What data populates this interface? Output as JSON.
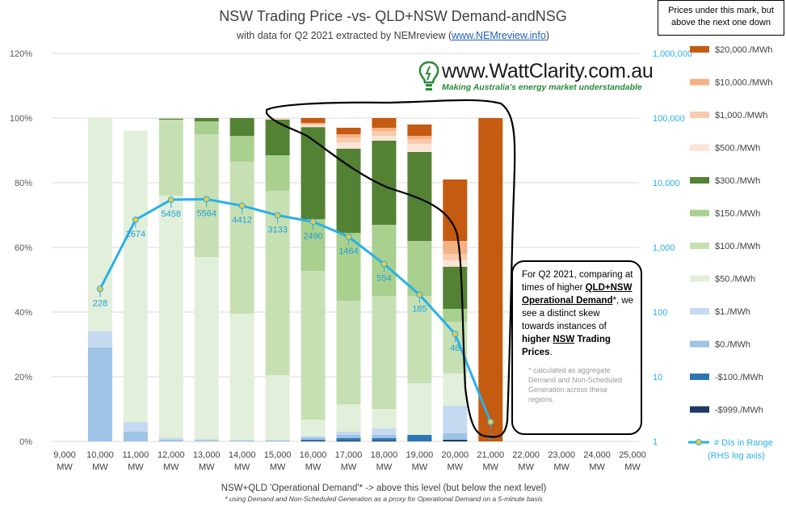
{
  "title": "NSW Trading Price -vs- QLD+NSW Demand-andNSG",
  "subtitle_prefix": "with data for Q2 2021 extracted by NEMreview (",
  "subtitle_link": "www.NEMreview.info",
  "subtitle_suffix": ")",
  "logo": {
    "brand": "www.WattClarity.com.au",
    "tagline": "Making Australia's energy market understandable"
  },
  "legend_header": "Prices under this mark, but above the next one down",
  "note": {
    "p1": "For Q2 2021, comparing at times of higher",
    "p1_bold": "QLD+NSW Operational Demand",
    "p1_rest": "*, we see a distinct skew towards instances of",
    "p1_bold2": "higher",
    "p1_bold3": "NSW",
    "p1_bold4": "Trading Prices",
    "p1_end": ".",
    "footnote": "* calculated as aggregate Demand and Non-Scheduled Generation across these regions."
  },
  "chart_data": {
    "type": "bar",
    "stacked": true,
    "xlabel": "NSW+QLD  'Operational Demand'* -> above this level (but below the next level)",
    "xlabel_note": "* using Demand and Non-Scheduled Generation as a proxy for Operational Demand on a 5-minute basis",
    "categories": [
      "9,000|MW",
      "10,000|MW",
      "11,000|MW",
      "12,000|MW",
      "13,000|MW",
      "14,000|MW",
      "15,000|MW",
      "16,000|MW",
      "17,000|MW",
      "18,000|MW",
      "19,000|MW",
      "20,000|MW",
      "21,000|MW",
      "22,000|MW",
      "23,000|MW",
      "24,000|MW",
      "25,000|MW"
    ],
    "y_left": {
      "ticks": [
        "0%",
        "20%",
        "40%",
        "60%",
        "80%",
        "100%",
        "120%"
      ],
      "ylim": [
        0,
        120
      ]
    },
    "y_right": {
      "scale": "log",
      "ticks": [
        "1",
        "10",
        "100",
        "1,000",
        "10,000",
        "100,000",
        "1,000,000"
      ],
      "ylim": [
        1,
        1000000
      ]
    },
    "series": [
      {
        "name": "-$999./MWh",
        "color": "#1f3864",
        "values": [
          0,
          0,
          0,
          0,
          0,
          0,
          0,
          0.2,
          0.3,
          0.3,
          0,
          0.5,
          0,
          0,
          0,
          0,
          0
        ]
      },
      {
        "name": "-$100./MWh",
        "color": "#2e75b6",
        "values": [
          0,
          0,
          0,
          0,
          0,
          0,
          0,
          0.3,
          0.7,
          0.7,
          2,
          0,
          0,
          0,
          0,
          0,
          0
        ]
      },
      {
        "name": "$0./MWh",
        "color": "#9dc3e6",
        "values": [
          0,
          29,
          3,
          0.5,
          0.4,
          0.3,
          0.3,
          0.8,
          1,
          1,
          0,
          2,
          0,
          0,
          0,
          0,
          0
        ]
      },
      {
        "name": "$1./MWh",
        "color": "#c5d9f1",
        "values": [
          0,
          5,
          3,
          0.5,
          0.3,
          0.2,
          0.2,
          0.4,
          1,
          2,
          0,
          8.5,
          0,
          0,
          0,
          0,
          0
        ]
      },
      {
        "name": "$50./MWh",
        "color": "#e2efda",
        "values": [
          0,
          66,
          90,
          75,
          56.3,
          39,
          20,
          5,
          8.5,
          6,
          16,
          10,
          0,
          0,
          0,
          0,
          0
        ]
      },
      {
        "name": "$100./MWh",
        "color": "#c6e0b4",
        "values": [
          0,
          0,
          0,
          23.5,
          38,
          47,
          57,
          46,
          32,
          35,
          27,
          16,
          0,
          0,
          0,
          0,
          0
        ]
      },
      {
        "name": "$150./MWh",
        "color": "#a9d08e",
        "values": [
          0,
          0,
          0,
          0,
          4,
          8,
          11,
          16,
          21,
          22,
          17,
          4,
          0,
          0,
          0,
          0,
          0
        ]
      },
      {
        "name": "$300./MWh",
        "color": "#548235",
        "values": [
          0,
          0,
          0,
          0.3,
          1,
          5.5,
          11,
          28.5,
          26,
          26,
          27.5,
          13,
          0,
          0,
          0,
          0,
          0
        ]
      },
      {
        "name": "$500./MWh",
        "color": "#fbe4d5",
        "values": [
          0,
          0,
          0,
          0,
          0,
          0,
          0.3,
          0.5,
          2,
          1.5,
          2.5,
          2,
          0,
          0,
          0,
          0,
          0
        ]
      },
      {
        "name": "$1,000./MWh",
        "color": "#f8cbad",
        "values": [
          0,
          0,
          0,
          0,
          0,
          0,
          0.1,
          0.5,
          1.5,
          1.5,
          1.5,
          2,
          0,
          0,
          0,
          0,
          0
        ]
      },
      {
        "name": "$10,000./MWh",
        "color": "#f4b183",
        "values": [
          0,
          0,
          0,
          0,
          0,
          0,
          0.1,
          0.3,
          1,
          1,
          1,
          4,
          0,
          0,
          0,
          0,
          0
        ]
      },
      {
        "name": "$20,000./MWh",
        "color": "#c55a11",
        "values": [
          0,
          0,
          0,
          0,
          0,
          0,
          0,
          1.5,
          2,
          3,
          3.5,
          19,
          100,
          0,
          0,
          0,
          0
        ]
      }
    ],
    "line_series": {
      "name": "# DIs in Range (RHS log axis)",
      "color": "#2ab0e8",
      "values": [
        null,
        228,
        2674,
        5458,
        5564,
        4412,
        3133,
        2490,
        1464,
        554,
        185,
        46,
        2,
        null,
        null,
        null,
        null
      ],
      "labels": [
        "",
        "228",
        "2674",
        "5458",
        "5564",
        "4412",
        "3133",
        "2490",
        "1464",
        "554",
        "185",
        "46",
        "2",
        "",
        "",
        "",
        ""
      ]
    },
    "legend_placement": "right"
  }
}
